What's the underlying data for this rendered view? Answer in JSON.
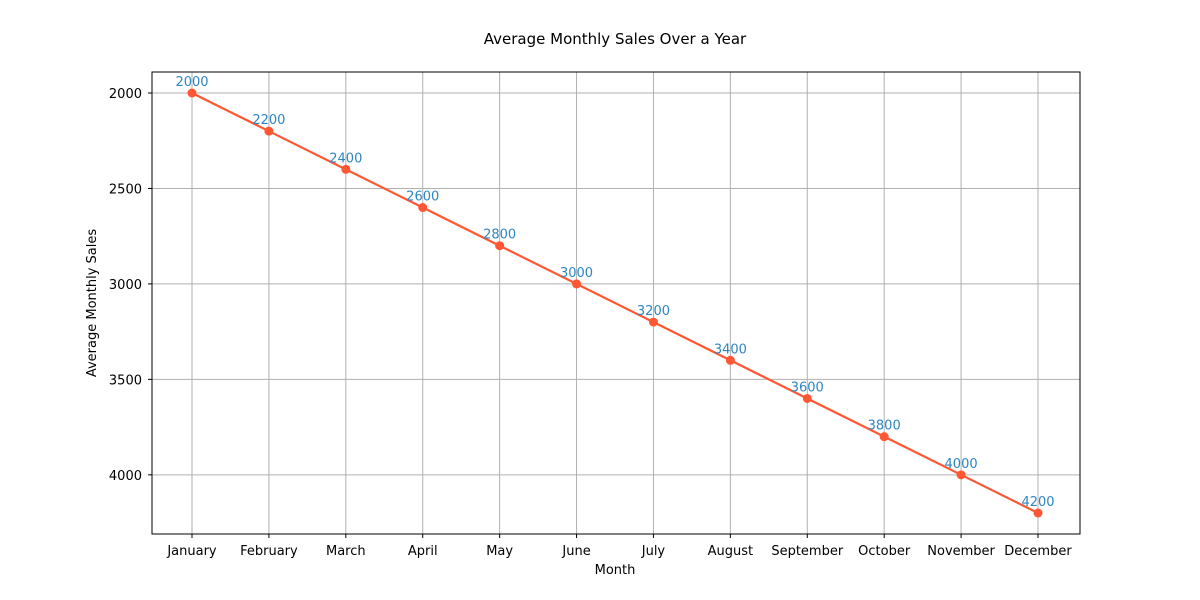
{
  "chart_data": {
    "type": "line",
    "title": "Average Monthly Sales Over a Year",
    "xlabel": "Month",
    "ylabel": "Average Monthly Sales",
    "categories": [
      "January",
      "February",
      "March",
      "April",
      "May",
      "June",
      "July",
      "August",
      "September",
      "October",
      "November",
      "December"
    ],
    "series": [
      {
        "values": [
          2000,
          2200,
          2400,
          2600,
          2800,
          3000,
          3200,
          3400,
          3600,
          3800,
          4000,
          4200
        ]
      }
    ],
    "data_labels": [
      "2000",
      "2200",
      "2400",
      "2600",
      "2800",
      "3000",
      "3200",
      "3400",
      "3600",
      "3800",
      "4000",
      "4200"
    ],
    "ylim": [
      4310,
      1890
    ],
    "y_inverted": true,
    "yticks": [
      2000,
      2500,
      3000,
      3500,
      4000
    ],
    "grid": true,
    "line_color": "#ff5733",
    "label_color": "#2e86c1"
  }
}
